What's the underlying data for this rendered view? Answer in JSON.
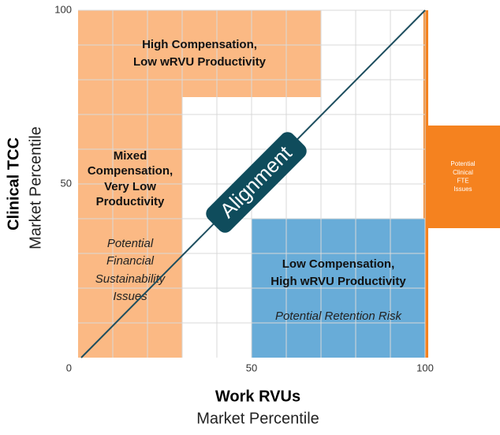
{
  "chart_data": {
    "type": "quadrant",
    "x_label": [
      "Work RVUs",
      "Market Percentile"
    ],
    "y_label": [
      "Clinical TCC",
      "Market Percentile"
    ],
    "xlim": [
      0,
      100
    ],
    "ylim": [
      0,
      100
    ],
    "xticks": [
      50,
      100
    ],
    "yticks": [
      0,
      50,
      100
    ],
    "x_grid": [
      10,
      20,
      30,
      40,
      50,
      60,
      70,
      80,
      90,
      100
    ],
    "y_grid": [
      10,
      20,
      30,
      40,
      50,
      60,
      70,
      80,
      90,
      100
    ],
    "regions": [
      {
        "label": [
          "High Compensation,",
          "Low wRVU Productivity"
        ],
        "color": "#fbb984",
        "x": [
          0,
          70
        ],
        "y": [
          75,
          100
        ]
      },
      {
        "label": [
          "Mixed",
          "Compensation,",
          "Very Low",
          "Productivity"
        ],
        "note": [
          "Potential",
          "Financial",
          "Sustainability",
          "Issues"
        ],
        "color": "#fbb984",
        "x": [
          0,
          30
        ],
        "y": [
          0,
          100
        ]
      },
      {
        "label": [
          "Low Compensation,",
          "High wRVU Productivity"
        ],
        "note": [
          "Potential Retention Risk"
        ],
        "color": "#68acd8",
        "x": [
          50,
          100
        ],
        "y": [
          0,
          40
        ]
      }
    ],
    "diagonal_label": "Alignment",
    "side_note": [
      "Potential",
      "Clinical",
      "FTE",
      "Issues"
    ]
  }
}
